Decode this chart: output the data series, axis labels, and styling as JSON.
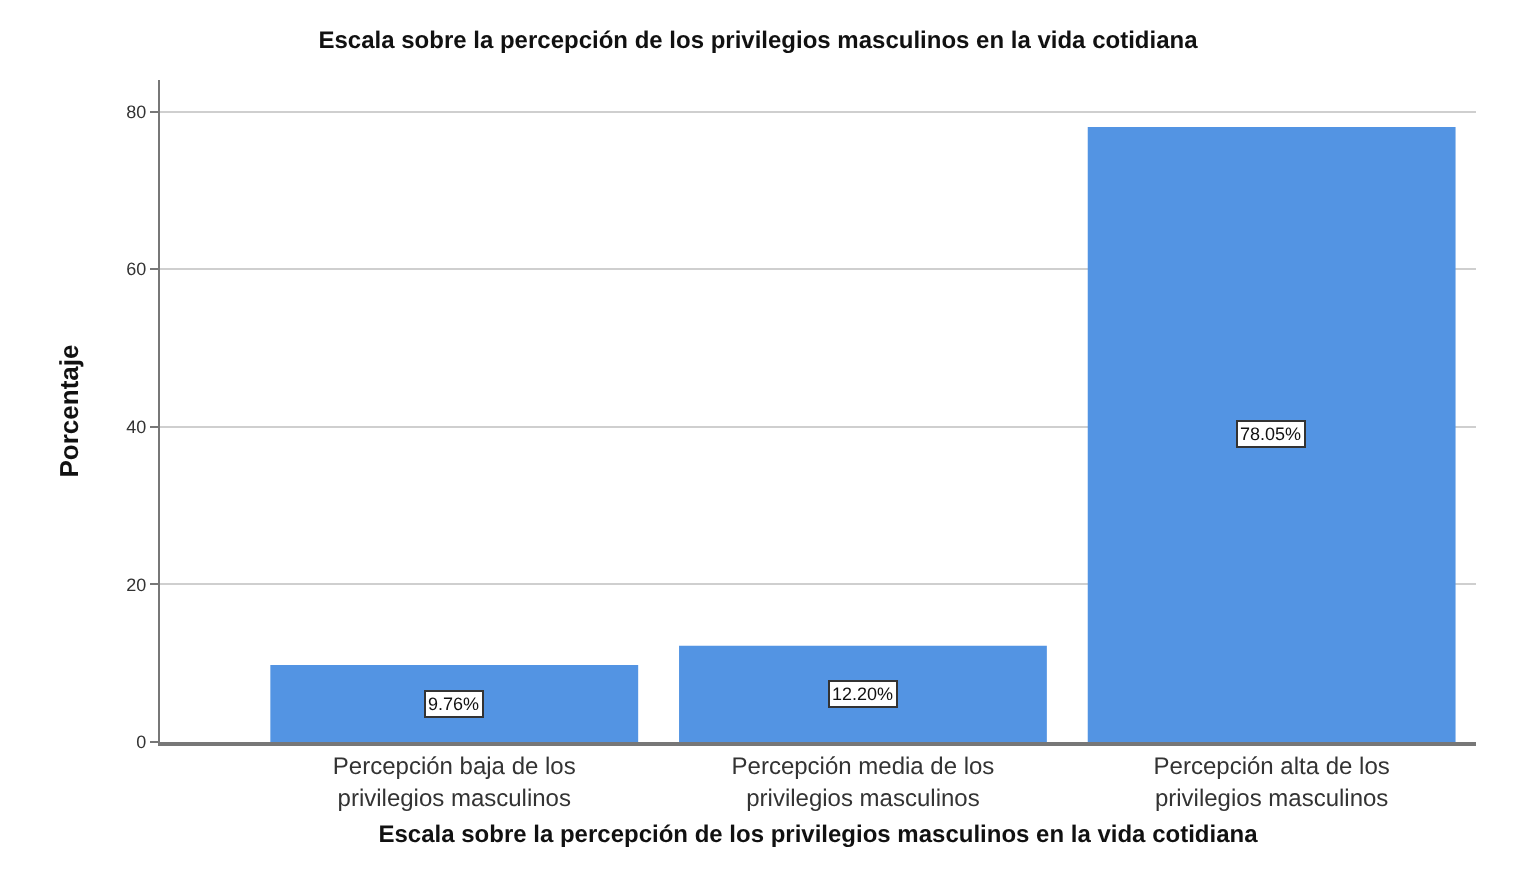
{
  "chart_data": {
    "type": "bar",
    "title": "Escala sobre la percepción de los privilegios masculinos en la vida cotidiana",
    "xlabel": "Escala sobre la percepción de los privilegios masculinos en la vida cotidiana",
    "ylabel": "Porcentaje",
    "categories": [
      "Percepción baja de los privilegios masculinos",
      "Percepción media de los privilegios masculinos",
      "Percepción alta de los privilegios masculinos"
    ],
    "values": [
      9.76,
      12.2,
      78.05
    ],
    "value_labels": [
      "9.76%",
      "12.20%",
      "78.05%"
    ],
    "color": "#5394e3",
    "ylim": [
      0,
      84
    ],
    "yticks": [
      0,
      20,
      40,
      60,
      80
    ],
    "grid": "y",
    "legend": false
  }
}
